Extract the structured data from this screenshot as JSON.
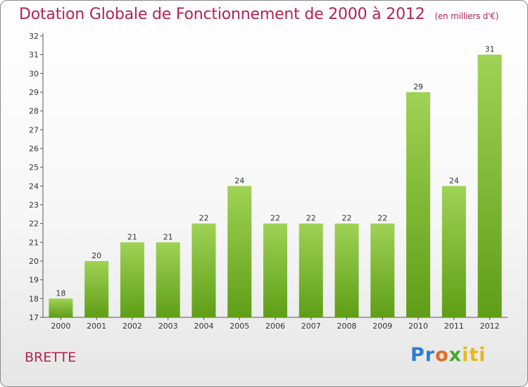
{
  "header": {
    "title": "Dotation Globale de Fonctionnement de 2000 à 2012",
    "subtitle": "(en milliers d'€)"
  },
  "footer": {
    "commune": "BRETTE",
    "logo_text": "Proxiti"
  },
  "colors": {
    "title": "#b3234f",
    "bar_top": "#9fd256",
    "bar_bottom": "#5f9e16"
  },
  "chart_data": {
    "type": "bar",
    "title": "Dotation Globale de Fonctionnement de 2000 à 2012",
    "subtitle": "(en milliers d'€)",
    "categories": [
      "2000",
      "2001",
      "2002",
      "2003",
      "2004",
      "2005",
      "2006",
      "2007",
      "2008",
      "2009",
      "2010",
      "2011",
      "2012"
    ],
    "values": [
      18,
      20,
      21,
      21,
      22,
      24,
      22,
      22,
      22,
      22,
      29,
      24,
      31
    ],
    "ylim": [
      17,
      32
    ],
    "yticks": [
      17,
      18,
      19,
      20,
      21,
      22,
      23,
      24,
      25,
      26,
      27,
      28,
      29,
      30,
      31,
      32
    ],
    "xlabel": "",
    "ylabel": "",
    "grid": false,
    "legend": "none"
  }
}
